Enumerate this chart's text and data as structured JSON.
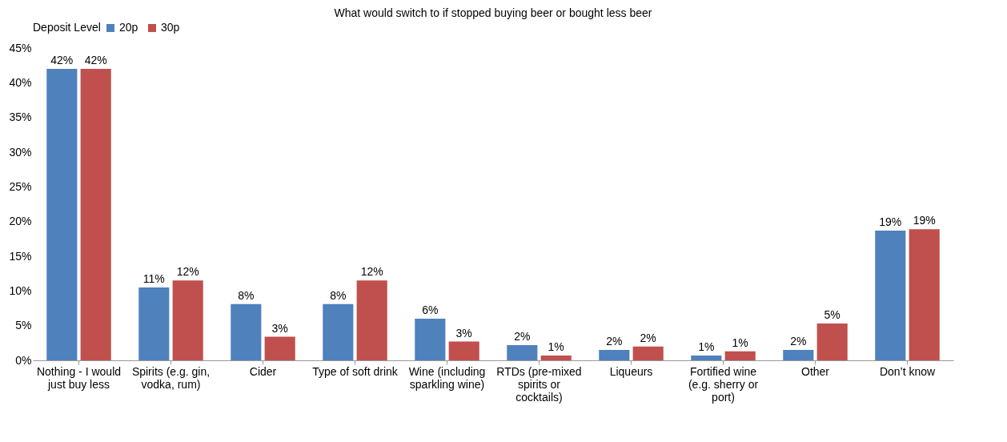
{
  "chart_data": {
    "type": "bar",
    "title": "What would switch to if stopped buying beer or bought less beer",
    "legend_title": "Deposit Level",
    "categories": [
      "Nothing - I would just buy less",
      "Spirits (e.g. gin, vodka, rum)",
      "Cider",
      "Type of soft drink",
      "Wine (including sparkling wine)",
      "RTDs (pre-mixed spirits or cocktails)",
      "Liqueurs",
      "Fortified wine (e.g. sherry or port)",
      "Other",
      "Don’t know"
    ],
    "series": [
      {
        "name": "20p",
        "color": "#4f81bd",
        "values": [
          42,
          10.5,
          8.1,
          8.1,
          6.0,
          2.2,
          1.5,
          0.7,
          1.5,
          18.7
        ],
        "value_labels": [
          "42%",
          "11%",
          "8%",
          "8%",
          "6%",
          "2%",
          "2%",
          "1%",
          "2%",
          "19%"
        ]
      },
      {
        "name": "30p",
        "color": "#c0504d",
        "values": [
          42,
          11.5,
          3.4,
          11.5,
          2.7,
          0.7,
          2.0,
          1.3,
          5.3,
          18.9
        ],
        "value_labels": [
          "42%",
          "12%",
          "3%",
          "12%",
          "3%",
          "1%",
          "2%",
          "1%",
          "5%",
          "19%"
        ]
      }
    ],
    "ylim": [
      0,
      45
    ],
    "yticks": [
      {
        "value": 0,
        "label": "0%"
      },
      {
        "value": 5,
        "label": "5%"
      },
      {
        "value": 10,
        "label": "10%"
      },
      {
        "value": 15,
        "label": "15%"
      },
      {
        "value": 20,
        "label": "20%"
      },
      {
        "value": 25,
        "label": "25%"
      },
      {
        "value": 30,
        "label": "30%"
      },
      {
        "value": 35,
        "label": "35%"
      },
      {
        "value": 40,
        "label": "40%"
      },
      {
        "value": 45,
        "label": "45%"
      }
    ],
    "grid": false,
    "legend": "top"
  }
}
